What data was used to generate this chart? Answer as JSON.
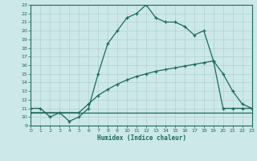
{
  "xlabel": "Humidex (Indice chaleur)",
  "bg_color": "#cce8e8",
  "line_color": "#1a6b5a",
  "grid_color": "#b8d8d8",
  "xlim": [
    0,
    23
  ],
  "ylim": [
    9,
    23
  ],
  "xticks": [
    0,
    1,
    2,
    3,
    4,
    5,
    6,
    7,
    8,
    9,
    10,
    11,
    12,
    13,
    14,
    15,
    16,
    17,
    18,
    19,
    20,
    21,
    22,
    23
  ],
  "yticks": [
    9,
    10,
    11,
    12,
    13,
    14,
    15,
    16,
    17,
    18,
    19,
    20,
    21,
    22,
    23
  ],
  "line1_x": [
    0,
    1,
    2,
    3,
    4,
    5,
    6,
    7,
    8,
    9,
    10,
    11,
    12,
    13,
    14,
    15,
    16,
    17,
    18,
    19,
    20,
    21,
    22,
    23
  ],
  "line1_y": [
    11,
    11,
    10,
    10.5,
    9.5,
    10,
    11,
    15,
    18.5,
    20,
    21.5,
    22,
    23,
    21.5,
    21,
    21,
    20.5,
    19.5,
    20,
    16.5,
    15,
    13,
    11.5,
    11
  ],
  "line2_x": [
    0,
    5,
    6,
    7,
    8,
    9,
    10,
    11,
    12,
    13,
    14,
    15,
    16,
    17,
    18,
    19,
    20,
    21,
    22,
    23
  ],
  "line2_y": [
    10.5,
    10.5,
    11.5,
    12.5,
    13.2,
    13.8,
    14.3,
    14.7,
    15.0,
    15.3,
    15.5,
    15.7,
    15.9,
    16.1,
    16.3,
    16.5,
    11,
    11,
    11,
    11
  ],
  "line3_x": [
    0,
    23
  ],
  "line3_y": [
    10.5,
    10.5
  ]
}
